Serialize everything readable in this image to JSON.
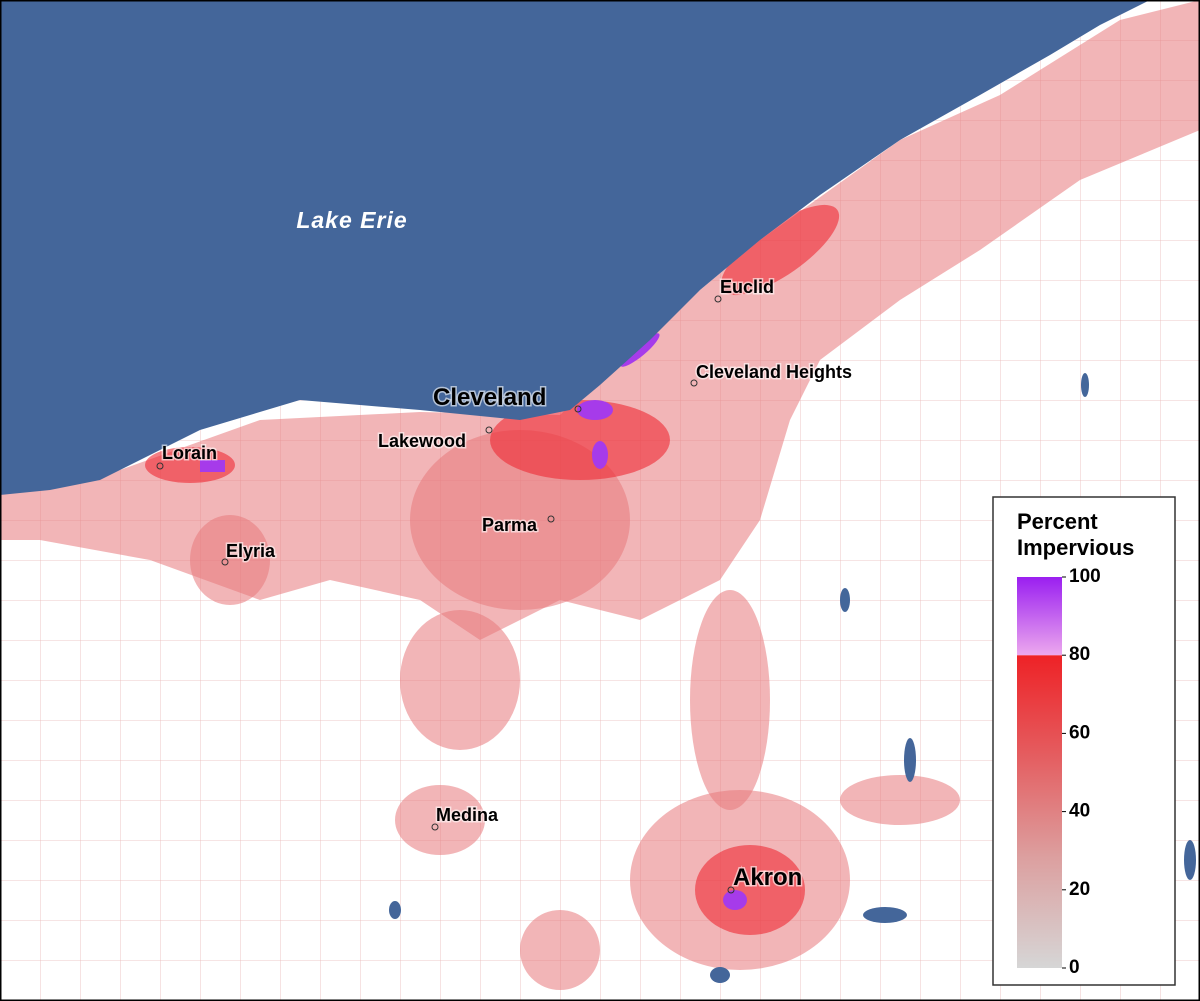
{
  "map": {
    "water_label": "Lake Erie",
    "places": [
      "Cleveland",
      "Euclid",
      "Cleveland Heights",
      "Lakewood",
      "Lorain",
      "Elyria",
      "Parma",
      "Medina",
      "Akron"
    ],
    "legend": {
      "title_lines": [
        "Percent",
        "Impervious"
      ],
      "range": [
        0,
        100
      ],
      "ticks": [
        0,
        20,
        40,
        60,
        80,
        100
      ]
    }
  }
}
